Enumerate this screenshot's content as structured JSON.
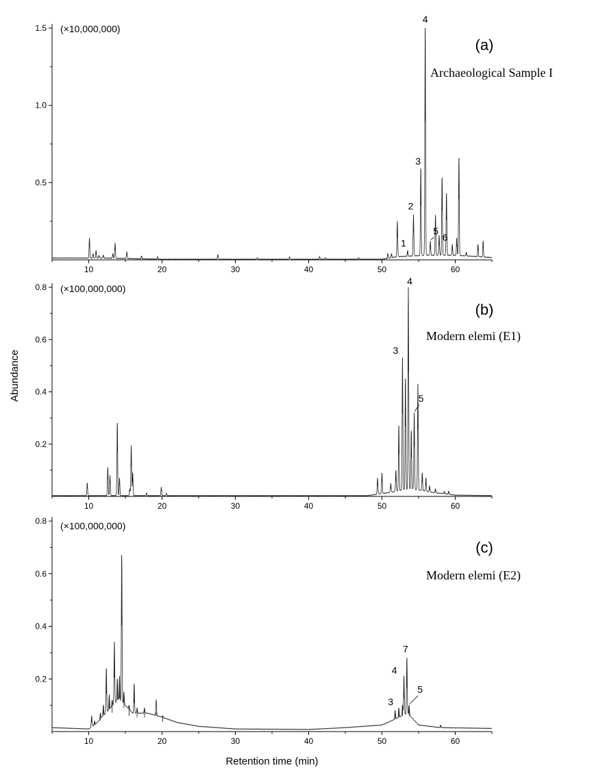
{
  "figure": {
    "ylabel": "Abundance",
    "xlabel": "Retention time (min)"
  },
  "chart_data": [
    {
      "type": "line",
      "panel_letter": "(a)",
      "title": "Archaeological Sample I",
      "multiplier": "(×10,000,000)",
      "xlim": [
        5,
        65
      ],
      "ylim": [
        0,
        1.5
      ],
      "x_ticks": [
        10,
        20,
        30,
        40,
        50,
        60
      ],
      "y_ticks": [
        0.5,
        1.0,
        1.5
      ],
      "y_tick_labels": [
        "0.5",
        "1.0",
        "1.5"
      ],
      "baseline": [
        [
          5,
          0.012
        ],
        [
          12,
          0.012
        ],
        [
          20,
          0.004
        ],
        [
          50,
          0.004
        ],
        [
          52,
          0.02
        ],
        [
          56,
          0.03
        ],
        [
          60,
          0.03
        ],
        [
          65,
          0.015
        ]
      ],
      "peaks": [
        [
          10.1,
          0.14
        ],
        [
          10.6,
          0.04
        ],
        [
          11.0,
          0.06
        ],
        [
          11.4,
          0.03
        ],
        [
          12.0,
          0.03
        ],
        [
          13.3,
          0.04
        ],
        [
          13.6,
          0.11
        ],
        [
          15.2,
          0.05
        ],
        [
          17.2,
          0.025
        ],
        [
          19.4,
          0.02
        ],
        [
          27.6,
          0.035
        ],
        [
          33.0,
          0.015
        ],
        [
          37.4,
          0.02
        ],
        [
          41.5,
          0.02
        ],
        [
          42.3,
          0.015
        ],
        [
          46.8,
          0.015
        ],
        [
          50.8,
          0.04
        ],
        [
          51.3,
          0.04
        ],
        [
          52.1,
          0.25
        ],
        [
          53.5,
          0.06
        ],
        [
          54.3,
          0.29
        ],
        [
          55.3,
          0.59
        ],
        [
          55.9,
          1.5
        ],
        [
          56.6,
          0.12
        ],
        [
          57.3,
          0.29
        ],
        [
          57.8,
          0.16
        ],
        [
          58.2,
          0.53
        ],
        [
          58.8,
          0.43
        ],
        [
          59.6,
          0.1
        ],
        [
          60.2,
          0.14
        ],
        [
          60.5,
          0.66
        ],
        [
          61.5,
          0.05
        ],
        [
          63.1,
          0.1
        ],
        [
          63.8,
          0.12
        ]
      ],
      "annotations": [
        {
          "label": "4",
          "x": 55.9,
          "y": 1.5
        },
        {
          "label": "3",
          "x": 55.3,
          "y": 0.59
        },
        {
          "label": "2",
          "x": 54.3,
          "y": 0.29
        },
        {
          "label": "5",
          "x": 56.6,
          "y": 0.12
        },
        {
          "label": "1",
          "x": 53.5,
          "y": 0.06
        },
        {
          "label": "6",
          "x": 57.3,
          "y": 0.0
        }
      ]
    },
    {
      "type": "line",
      "panel_letter": "(b)",
      "title": "Modern elemi (E1)",
      "multiplier": "(×100,000,000)",
      "xlim": [
        5,
        65
      ],
      "ylim": [
        0,
        0.8
      ],
      "x_ticks": [
        10,
        20,
        30,
        40,
        50,
        60
      ],
      "y_ticks": [
        0.2,
        0.4,
        0.6,
        0.8
      ],
      "y_tick_labels": [
        "0.2",
        "0.4",
        "0.6",
        "0.8"
      ],
      "baseline": [
        [
          5,
          0.003
        ],
        [
          48,
          0.003
        ],
        [
          51,
          0.015
        ],
        [
          54,
          0.03
        ],
        [
          57,
          0.015
        ],
        [
          60,
          0.005
        ],
        [
          65,
          0.003
        ]
      ],
      "peaks": [
        [
          9.8,
          0.05
        ],
        [
          12.6,
          0.11
        ],
        [
          12.9,
          0.08
        ],
        [
          13.9,
          0.28
        ],
        [
          14.2,
          0.07
        ],
        [
          15.6,
          0.03
        ],
        [
          15.8,
          0.195
        ],
        [
          16.0,
          0.09
        ],
        [
          17.9,
          0.012
        ],
        [
          19.9,
          0.035
        ],
        [
          20.6,
          0.012
        ],
        [
          49.4,
          0.07
        ],
        [
          50.0,
          0.09
        ],
        [
          51.2,
          0.05
        ],
        [
          51.9,
          0.1
        ],
        [
          52.3,
          0.27
        ],
        [
          52.8,
          0.53
        ],
        [
          53.2,
          0.45
        ],
        [
          53.6,
          0.8
        ],
        [
          54.0,
          0.25
        ],
        [
          54.4,
          0.32
        ],
        [
          54.9,
          0.43
        ],
        [
          55.5,
          0.09
        ],
        [
          56.0,
          0.07
        ],
        [
          56.5,
          0.04
        ],
        [
          57.3,
          0.03
        ],
        [
          58.5,
          0.02
        ],
        [
          59.1,
          0.02
        ]
      ],
      "annotations": [
        {
          "label": "4",
          "x": 53.6,
          "y": 0.8
        },
        {
          "label": "3",
          "x": 52.8,
          "y": 0.53
        },
        {
          "label": "5",
          "x": 54.4,
          "y": 0.32
        }
      ]
    },
    {
      "type": "line",
      "panel_letter": "(c)",
      "title": "Modern elemi (E2)",
      "multiplier": "(×100,000,000)",
      "xlim": [
        5,
        65
      ],
      "ylim": [
        0,
        0.8
      ],
      "x_ticks": [
        10,
        20,
        30,
        40,
        50,
        60
      ],
      "y_ticks": [
        0.2,
        0.4,
        0.6,
        0.8
      ],
      "y_tick_labels": [
        "0.2",
        "0.4",
        "0.6",
        "0.8"
      ],
      "baseline": [
        [
          5,
          0.015
        ],
        [
          10,
          0.01
        ],
        [
          11,
          0.03
        ],
        [
          12,
          0.06
        ],
        [
          13,
          0.09
        ],
        [
          14,
          0.12
        ],
        [
          15,
          0.1
        ],
        [
          16,
          0.07
        ],
        [
          18,
          0.07
        ],
        [
          20,
          0.055
        ],
        [
          22,
          0.035
        ],
        [
          25,
          0.02
        ],
        [
          30,
          0.01
        ],
        [
          40,
          0.008
        ],
        [
          45,
          0.015
        ],
        [
          50,
          0.025
        ],
        [
          52,
          0.05
        ],
        [
          53.5,
          0.07
        ],
        [
          55,
          0.025
        ],
        [
          58,
          0.015
        ],
        [
          65,
          0.012
        ]
      ],
      "peaks": [
        [
          10.4,
          0.06
        ],
        [
          10.8,
          0.04
        ],
        [
          11.6,
          0.07
        ],
        [
          12.0,
          0.1
        ],
        [
          12.4,
          0.24
        ],
        [
          12.8,
          0.14
        ],
        [
          13.2,
          0.12
        ],
        [
          13.5,
          0.34
        ],
        [
          13.9,
          0.2
        ],
        [
          14.2,
          0.21
        ],
        [
          14.5,
          0.67
        ],
        [
          14.8,
          0.15
        ],
        [
          15.5,
          0.1
        ],
        [
          16.2,
          0.18
        ],
        [
          16.6,
          0.09
        ],
        [
          17.6,
          0.09
        ],
        [
          19.2,
          0.06
        ],
        [
          20.1,
          0.06
        ],
        [
          51.8,
          0.08
        ],
        [
          52.3,
          0.09
        ],
        [
          52.8,
          0.1
        ],
        [
          53.0,
          0.21
        ],
        [
          53.4,
          0.28
        ],
        [
          53.7,
          0.1
        ],
        [
          58.0,
          0.025
        ]
      ],
      "annotations": [
        {
          "label": "7",
          "x": 53.4,
          "y": 0.28
        },
        {
          "label": "4",
          "x": 53.0,
          "y": 0.21
        },
        {
          "label": "5",
          "x": 53.7,
          "y": 0.1
        },
        {
          "label": "3",
          "x": 52.3,
          "y": 0.09
        }
      ]
    }
  ]
}
